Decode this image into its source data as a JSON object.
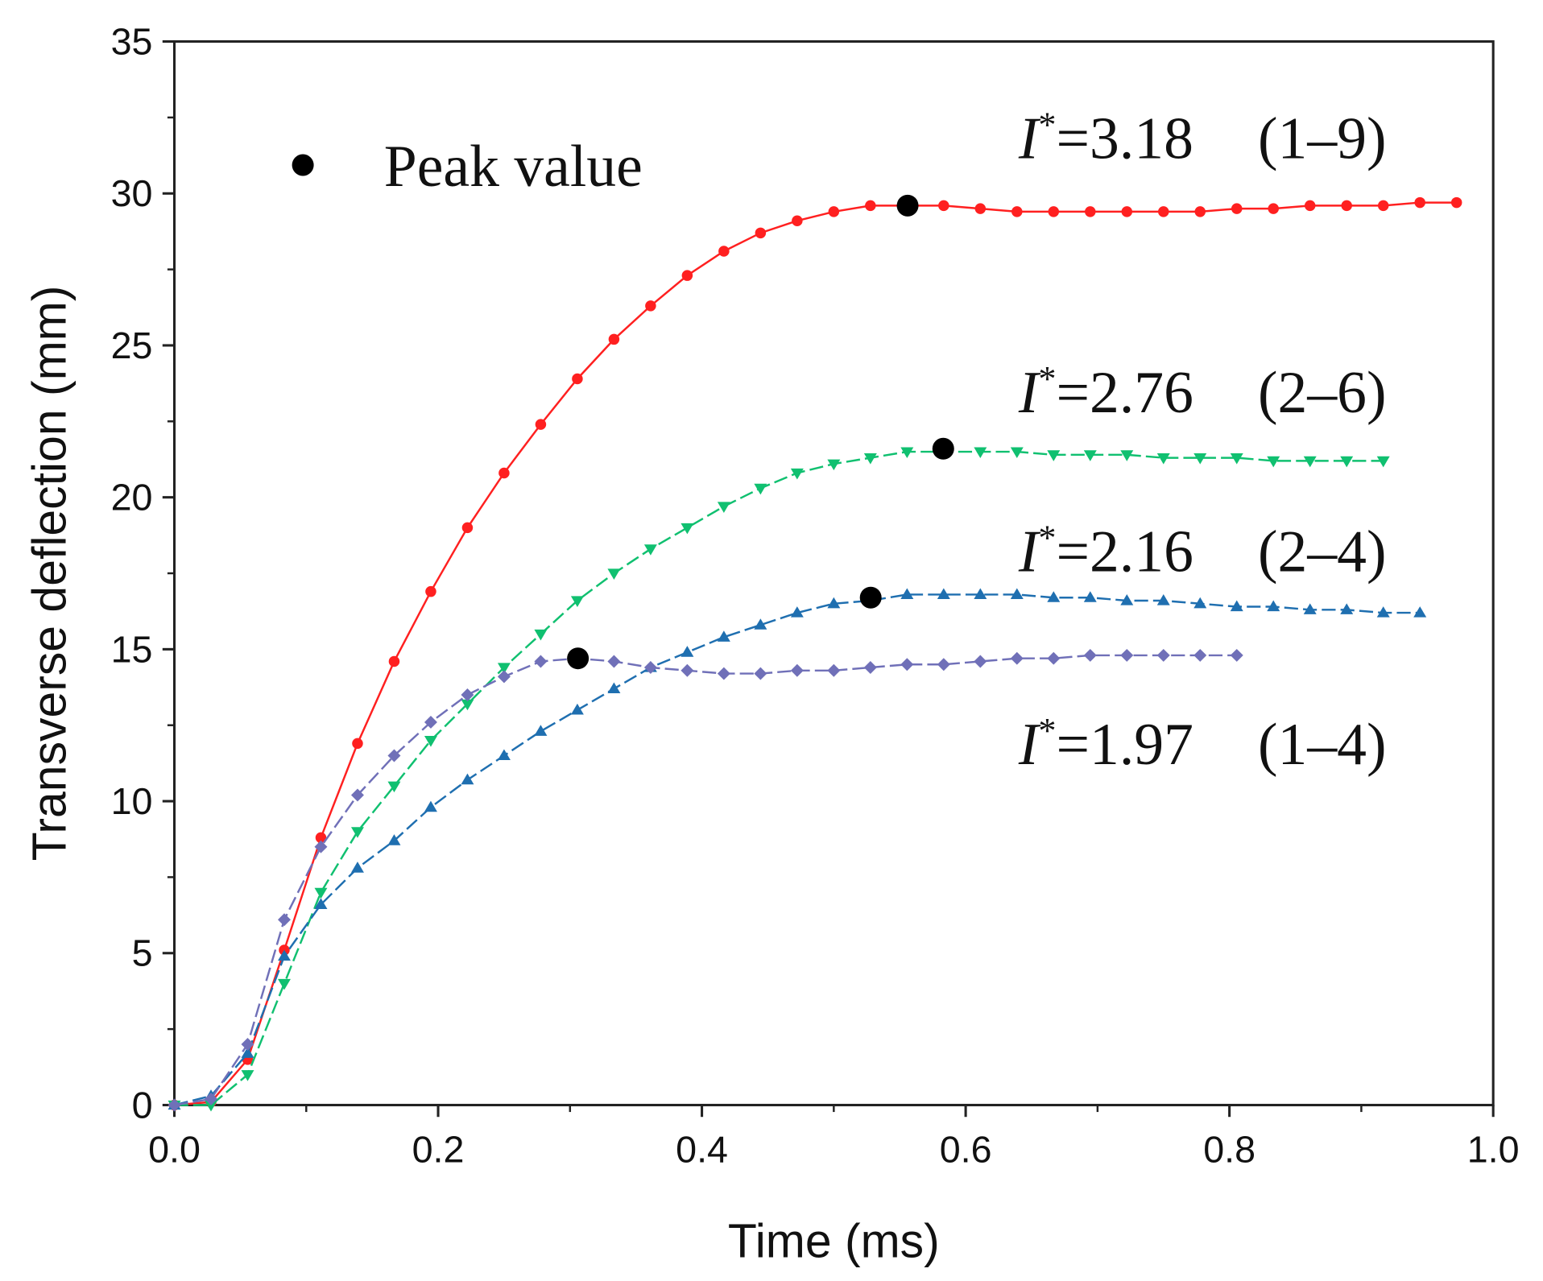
{
  "chart_data": {
    "type": "line",
    "xlabel": "Time (ms)",
    "ylabel": "Transverse deflection (mm)",
    "xlim": [
      0,
      1.0
    ],
    "ylim": [
      0,
      35
    ],
    "xticks": [
      "0.0",
      "0.2",
      "0.4",
      "0.6",
      "0.8",
      "1.0"
    ],
    "yticks": [
      "0",
      "5",
      "10",
      "15",
      "20",
      "25",
      "30",
      "35"
    ],
    "time_step_ms": 0.027778,
    "legend": {
      "label": "Peak value",
      "placement": "top-left"
    },
    "series": [
      {
        "name": "I*=3.18 (1–9)",
        "italic": "I",
        "sup": "*",
        "rest": "=3.18",
        "paren": "(1–9)",
        "color": "#ff2020",
        "marker": "circle",
        "dash": "solid-dashed",
        "values": [
          0,
          0.1,
          1.5,
          5.1,
          8.8,
          11.9,
          14.6,
          16.9,
          19.0,
          20.8,
          22.4,
          23.9,
          25.2,
          26.3,
          27.3,
          28.1,
          28.7,
          29.1,
          29.4,
          29.6,
          29.6,
          29.6,
          29.5,
          29.4,
          29.4,
          29.4,
          29.4,
          29.4,
          29.4,
          29.5,
          29.5,
          29.6,
          29.6,
          29.6,
          29.7,
          29.7
        ],
        "peak": [
          0.556,
          29.6
        ]
      },
      {
        "name": "I*=2.76 (2–6)",
        "italic": "I",
        "sup": "*",
        "rest": "=2.76",
        "paren": "(2–6)",
        "color": "#10c070",
        "marker": "triangle-down",
        "values": [
          0,
          0,
          1.0,
          4.0,
          7.0,
          9.0,
          10.5,
          12.0,
          13.2,
          14.4,
          15.5,
          16.6,
          17.5,
          18.3,
          19.0,
          19.7,
          20.3,
          20.8,
          21.1,
          21.3,
          21.5,
          21.5,
          21.5,
          21.5,
          21.4,
          21.4,
          21.4,
          21.3,
          21.3,
          21.3,
          21.2,
          21.2,
          21.2,
          21.2
        ],
        "peak": [
          0.583,
          21.6
        ]
      },
      {
        "name": "I*=2.16 (2–4)",
        "italic": "I",
        "sup": "*",
        "rest": "=2.16",
        "paren": "(2–4)",
        "color": "#1f6fb0",
        "marker": "triangle-up",
        "values": [
          0,
          0.3,
          1.7,
          4.9,
          6.6,
          7.8,
          8.7,
          9.8,
          10.7,
          11.5,
          12.3,
          13.0,
          13.7,
          14.4,
          14.9,
          15.4,
          15.8,
          16.2,
          16.5,
          16.6,
          16.8,
          16.8,
          16.8,
          16.8,
          16.7,
          16.7,
          16.6,
          16.6,
          16.5,
          16.4,
          16.4,
          16.3,
          16.3,
          16.2,
          16.2
        ],
        "peak": [
          0.528,
          16.7
        ]
      },
      {
        "name": "I*=1.97 (1–4)",
        "italic": "I",
        "sup": "*",
        "rest": "=1.97",
        "paren": "(1–4)",
        "color": "#7070b8",
        "marker": "diamond",
        "values": [
          0,
          0.2,
          2.0,
          6.1,
          8.5,
          10.2,
          11.5,
          12.6,
          13.5,
          14.1,
          14.6,
          14.7,
          14.6,
          14.4,
          14.3,
          14.2,
          14.2,
          14.3,
          14.3,
          14.4,
          14.5,
          14.5,
          14.6,
          14.7,
          14.7,
          14.8,
          14.8,
          14.8,
          14.8,
          14.8
        ],
        "peak": [
          0.306,
          14.7
        ]
      }
    ]
  }
}
